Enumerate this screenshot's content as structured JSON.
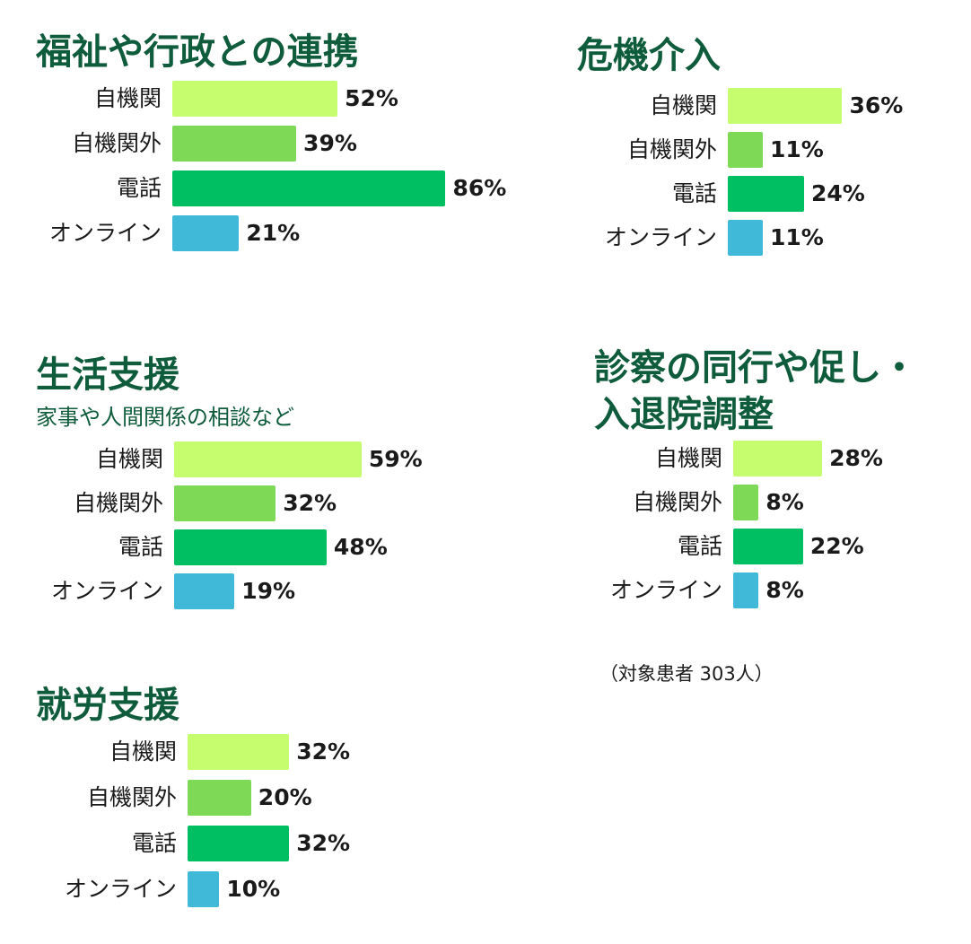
{
  "colors": {
    "title": "#0f5c3c",
    "series": [
      "#c5fd6e",
      "#7ed957",
      "#00bf63",
      "#40b9d9"
    ]
  },
  "chart_data": [
    {
      "type": "bar",
      "title": "福祉や行政との連携",
      "title_lines": [
        "福祉や行政との連携"
      ],
      "subtitle": "",
      "categories": [
        "自機関",
        "自機関外",
        "電話",
        "オンライン"
      ],
      "values": [
        52,
        39,
        86,
        21
      ],
      "value_labels": [
        "52%",
        "39%",
        "86%",
        "21%"
      ]
    },
    {
      "type": "bar",
      "title": "危機介入",
      "title_lines": [
        "危機介入"
      ],
      "subtitle": "",
      "categories": [
        "自機関",
        "自機関外",
        "電話",
        "オンライン"
      ],
      "values": [
        36,
        11,
        24,
        11
      ],
      "value_labels": [
        "36%",
        "11%",
        "24%",
        "11%"
      ]
    },
    {
      "type": "bar",
      "title": "生活支援",
      "title_lines": [
        "生活支援"
      ],
      "subtitle": "家事や人間関係の相談など",
      "categories": [
        "自機関",
        "自機関外",
        "電話",
        "オンライン"
      ],
      "values": [
        59,
        32,
        48,
        19
      ],
      "value_labels": [
        "59%",
        "32%",
        "48%",
        "19%"
      ]
    },
    {
      "type": "bar",
      "title": "診察の同行や促し・入退院調整",
      "title_lines": [
        "診察の同行や促し・",
        "入退院調整"
      ],
      "subtitle": "",
      "categories": [
        "自機関",
        "自機関外",
        "電話",
        "オンライン"
      ],
      "values": [
        28,
        8,
        22,
        8
      ],
      "value_labels": [
        "28%",
        "8%",
        "22%",
        "8%"
      ]
    },
    {
      "type": "bar",
      "title": "就労支援",
      "title_lines": [
        "就労支援"
      ],
      "subtitle": "",
      "categories": [
        "自機関",
        "自機関外",
        "電話",
        "オンライン"
      ],
      "values": [
        32,
        20,
        32,
        10
      ],
      "value_labels": [
        "32%",
        "20%",
        "32%",
        "10%"
      ]
    }
  ],
  "note": "（対象患者 303人）"
}
